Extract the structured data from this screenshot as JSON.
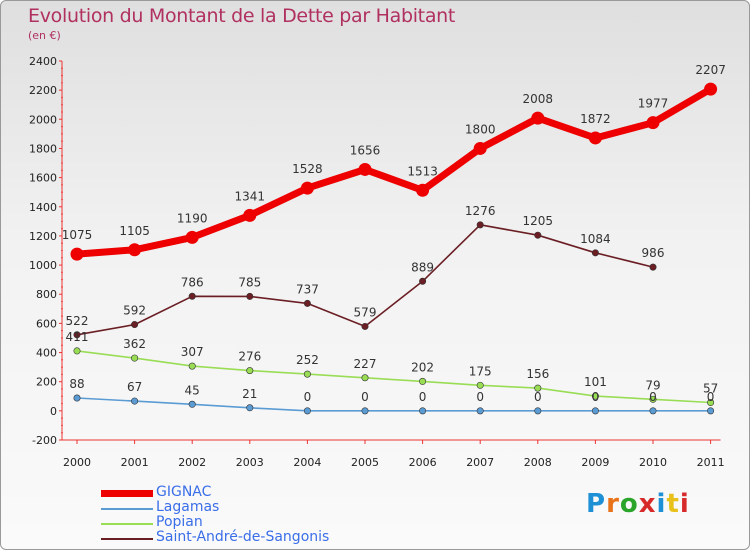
{
  "header": {
    "title": "Evolution du Montant de la Dette par Habitant",
    "subtitle": "(en €)"
  },
  "logo": {
    "text": "Proxiti",
    "colors": [
      "#1e90d6",
      "#e8731a",
      "#2aa52a",
      "#d72b2b",
      "#1e90d6",
      "#e8c21a",
      "#d72b2b"
    ]
  },
  "chart_data": {
    "type": "line",
    "x": [
      "2000",
      "2001",
      "2002",
      "2003",
      "2004",
      "2005",
      "2006",
      "2007",
      "2008",
      "2009",
      "2010",
      "2011"
    ],
    "ylim": [
      -200,
      2400
    ],
    "yticks": [
      -200,
      0,
      200,
      400,
      600,
      800,
      1000,
      1200,
      1400,
      1600,
      1800,
      2000,
      2200,
      2400
    ],
    "grid": false,
    "legend_position": "bottom-left",
    "series": [
      {
        "name": "GIGNAC",
        "color": "#ee0000",
        "values": [
          1075,
          1105,
          1190,
          1341,
          1528,
          1656,
          1513,
          1800,
          2008,
          1872,
          1977,
          2207
        ]
      },
      {
        "name": "Lagamas",
        "color": "#5a9bd4",
        "values": [
          88,
          67,
          45,
          21,
          0,
          0,
          0,
          0,
          0,
          0,
          0,
          0
        ]
      },
      {
        "name": "Popian",
        "color": "#99dd55",
        "values": [
          411,
          362,
          307,
          276,
          252,
          227,
          202,
          175,
          156,
          101,
          79,
          57
        ]
      },
      {
        "name": "Saint-André-de-Sangonis",
        "color": "#6b1f25",
        "values": [
          522,
          592,
          786,
          785,
          737,
          579,
          889,
          1276,
          1205,
          1084,
          986,
          null
        ]
      }
    ]
  }
}
